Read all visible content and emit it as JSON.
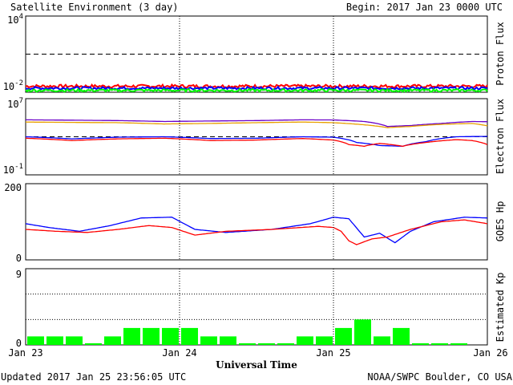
{
  "header": {
    "title": "Satellite Environment (3 day)",
    "begin": "Begin:  2017 Jan 23 0000 UTC"
  },
  "footer": {
    "updated": "Updated 2017 Jan 25 23:56:05 UTC",
    "credit": "NOAA/SWPC Boulder, CO USA",
    "xlabel": "Universal Time"
  },
  "x_ticks": [
    "Jan 23",
    "Jan 24",
    "Jan 25",
    "Jan 26"
  ],
  "colors": {
    "red": "#ff0000",
    "blue": "#0000ff",
    "green": "#00ff00",
    "orange": "#e8a000",
    "purple": "#6a00c8"
  },
  "chart_data": [
    {
      "type": "line",
      "ylabel": "Proton Flux",
      "scale": "log",
      "ylim": [
        0.01,
        10000
      ],
      "y_ticks": [
        {
          "base": "10",
          "exp": "4"
        },
        {
          "base": "10",
          "exp": "-2"
        }
      ],
      "threshold": 10,
      "x_days": [
        0,
        3
      ],
      "series": [
        {
          "color": "#ff0000",
          "x": [
            0,
            3
          ],
          "y": [
            0.03,
            0.03
          ],
          "noise": 0.12
        },
        {
          "color": "#0000ff",
          "x": [
            0,
            3
          ],
          "y": [
            0.021,
            0.021
          ],
          "noise": 0.1
        },
        {
          "color": "#00ff00",
          "x": [
            0,
            3
          ],
          "y": [
            0.014,
            0.014
          ],
          "noise": 0.1
        }
      ]
    },
    {
      "type": "line",
      "ylabel": "Electron Flux",
      "scale": "log",
      "ylim": [
        0.1,
        10000000
      ],
      "y_ticks": [
        {
          "base": "10",
          "exp": "7"
        },
        {
          "base": "10",
          "exp": "-1"
        }
      ],
      "threshold": 1000,
      "series": [
        {
          "color": "#6a00c8",
          "x": [
            0,
            0.3,
            0.6,
            0.9,
            1.2,
            1.5,
            1.8,
            2.0,
            2.2,
            2.35,
            2.5,
            2.7,
            2.9,
            3.0
          ],
          "y": [
            60000,
            55000,
            50000,
            40000,
            45000,
            50000,
            60000,
            58000,
            40000,
            12000,
            15000,
            25000,
            40000,
            38000
          ]
        },
        {
          "color": "#e8a000",
          "x": [
            0,
            0.3,
            0.6,
            0.9,
            1.2,
            1.5,
            1.8,
            2.0,
            2.2,
            2.35,
            2.5,
            2.7,
            2.9,
            3.0
          ],
          "y": [
            35000,
            32000,
            30000,
            22000,
            25000,
            30000,
            35000,
            30000,
            18000,
            9000,
            12000,
            20000,
            25000,
            14000
          ]
        },
        {
          "color": "#0000ff",
          "x": [
            0,
            0.3,
            0.6,
            0.9,
            1.2,
            1.5,
            1.8,
            2.0,
            2.15,
            2.3,
            2.45,
            2.6,
            2.8,
            3.0
          ],
          "y": [
            1000,
            600,
            900,
            1000,
            650,
            700,
            1000,
            900,
            250,
            120,
            100,
            300,
            1000,
            1100
          ]
        },
        {
          "color": "#ff0000",
          "x": [
            0,
            0.3,
            0.6,
            0.9,
            1.2,
            1.5,
            1.8,
            2.0,
            2.1,
            2.2,
            2.3,
            2.45,
            2.6,
            2.8,
            2.9,
            3.0
          ],
          "y": [
            700,
            400,
            600,
            700,
            400,
            450,
            650,
            450,
            150,
            100,
            200,
            100,
            250,
            500,
            400,
            150
          ]
        }
      ]
    },
    {
      "type": "line",
      "ylabel": "GOES Hp",
      "scale": "linear",
      "ylim": [
        0,
        200
      ],
      "y_ticks": [
        "200",
        "0"
      ],
      "series": [
        {
          "color": "#0000ff",
          "x": [
            0,
            0.15,
            0.35,
            0.55,
            0.75,
            0.95,
            1.1,
            1.3,
            1.6,
            1.85,
            2.0,
            2.1,
            2.2,
            2.3,
            2.4,
            2.5,
            2.65,
            2.85,
            3.0
          ],
          "y": [
            95,
            85,
            75,
            90,
            110,
            112,
            80,
            72,
            80,
            95,
            112,
            108,
            60,
            70,
            45,
            75,
            100,
            112,
            110
          ]
        },
        {
          "color": "#ff0000",
          "x": [
            0,
            0.2,
            0.4,
            0.6,
            0.8,
            0.95,
            1.1,
            1.3,
            1.6,
            1.9,
            2.0,
            2.05,
            2.1,
            2.15,
            2.25,
            2.35,
            2.5,
            2.7,
            2.85,
            3.0
          ],
          "y": [
            80,
            75,
            72,
            80,
            90,
            85,
            65,
            75,
            80,
            88,
            85,
            75,
            50,
            40,
            55,
            60,
            80,
            100,
            105,
            95
          ]
        }
      ]
    },
    {
      "type": "bar",
      "ylabel": "Estimated Kp",
      "ylim": [
        0,
        9
      ],
      "y_ticks": [
        "9",
        "0"
      ],
      "values": [
        1,
        1,
        1,
        0,
        1,
        2,
        2,
        2,
        2,
        1,
        1,
        0,
        0,
        0,
        1,
        1,
        2,
        3,
        1,
        2,
        0,
        0,
        0
      ],
      "bar_color": "#00ff00"
    }
  ]
}
